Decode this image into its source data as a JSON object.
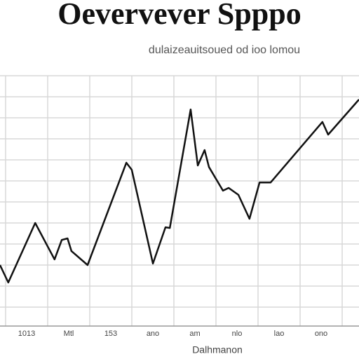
{
  "chart_data": {
    "type": "line",
    "title": "Oevervever Spppo",
    "subtitle": "dulaizeauitsoued od ioo lomou",
    "x_label": "Dalhmanon",
    "tick_labels": [
      "1013",
      "Mtl",
      "153",
      "ano",
      "am",
      "nlo",
      "lao",
      "ono"
    ],
    "x": [
      0,
      2.3,
      9.8,
      15.2,
      17.2,
      18.8,
      19.9,
      24.4,
      35.2,
      36.7,
      42.6,
      46.1,
      47.3,
      53.1,
      55.1,
      57.0,
      58.2,
      62.1,
      63.7,
      66.4,
      69.5,
      72.3,
      75.4,
      89.8,
      91.4,
      100
    ],
    "values": [
      24.5,
      17.5,
      41.4,
      26.8,
      34.6,
      35.2,
      30.1,
      24.5,
      65.6,
      62.8,
      25.1,
      39.7,
      39.4,
      87.0,
      64.5,
      70.7,
      63.9,
      54.4,
      55.5,
      52.7,
      43.1,
      57.7,
      57.7,
      82.0,
      76.9,
      91.0
    ],
    "color": "#111111",
    "xlim": [
      0,
      100
    ],
    "ylim": [
      0,
      100
    ],
    "grid": true
  }
}
